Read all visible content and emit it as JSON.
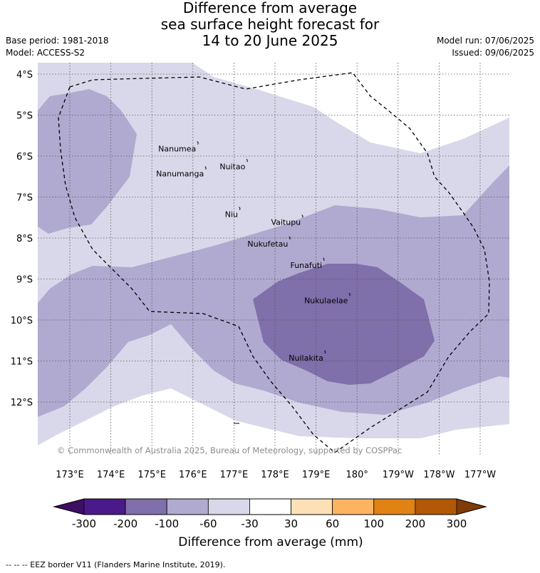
{
  "header": {
    "title_lines": [
      "Difference from average",
      "sea surface height forecast for",
      "14 to 20 June 2025"
    ],
    "base_period": "Base period: 1981-2018",
    "model": "Model: ACCESS-S2",
    "model_run": "Model run: 07/06/2025",
    "issued": "Issued: 09/06/2025"
  },
  "map": {
    "lat_labels": [
      "4°S",
      "5°S",
      "6°S",
      "7°S",
      "8°S",
      "9°S",
      "10°S",
      "11°S",
      "12°S"
    ],
    "lon_labels": [
      "173°E",
      "174°E",
      "175°E",
      "176°E",
      "177°E",
      "178°E",
      "179°E",
      "180°",
      "179°W",
      "178°W",
      "177°W"
    ],
    "islands": [
      {
        "name": "Nanumea",
        "lon": 176.13,
        "lat": -5.68
      },
      {
        "name": "Nuitao",
        "lon": 177.33,
        "lat": -6.11
      },
      {
        "name": "Nanumanga",
        "lon": 176.32,
        "lat": -6.29
      },
      {
        "name": "Niu",
        "lon": 177.15,
        "lat": -7.28
      },
      {
        "name": "Vaitupu",
        "lon": 178.68,
        "lat": -7.47
      },
      {
        "name": "Nukufetau",
        "lon": 178.37,
        "lat": -8.0
      },
      {
        "name": "Funafuti",
        "lon": 179.2,
        "lat": -8.52
      },
      {
        "name": "Nukulaelae",
        "lon": 179.83,
        "lat": -9.38
      },
      {
        "name": "Nuilakita",
        "lon": 179.23,
        "lat": -10.78
      }
    ],
    "copyright": "© Commonwealth of Australia 2025, Bureau of Meteorology, supported by COSPPac",
    "colors": {
      "lt_-200": "#4a1a8a",
      "-200_-100": "#7f6faa",
      "-100_-60": "#b0aad0",
      "-60_-30": "#d9d8ea",
      "-30_30": "#ffffff",
      "30_60": "#fee0b6",
      "60_100": "#fdb462",
      "100_200": "#e08214",
      "200_300": "#b35806",
      "gt_300": "#7f3b08"
    }
  },
  "colorbar": {
    "ticks": [
      "-300",
      "-200",
      "-100",
      "-60",
      "-30",
      "30",
      "60",
      "100",
      "200",
      "300"
    ],
    "label": "Difference from average (mm)"
  },
  "footnote": "-- -- -- EEZ border V11 (Flanders Marine Institute, 2019)."
}
